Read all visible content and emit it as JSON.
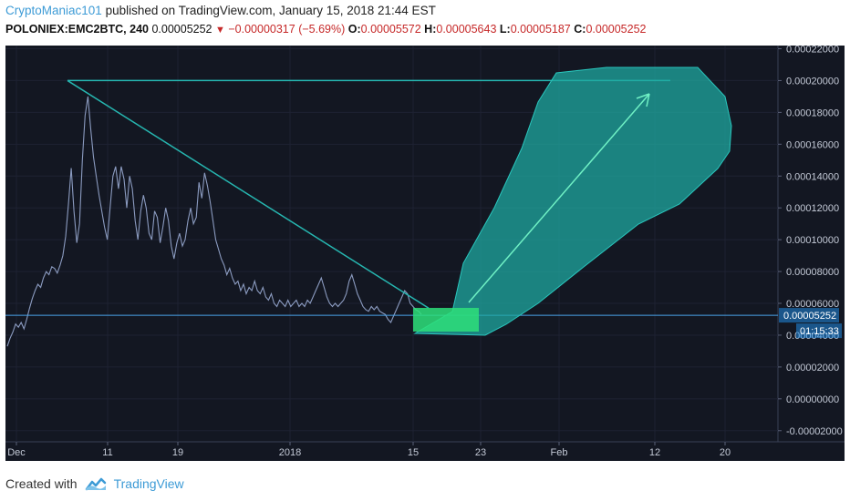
{
  "header": {
    "author": "CryptoManiac101",
    "published_text": "published on TradingView.com, January 15, 2018 21:44 EST"
  },
  "ticker": {
    "symbol": "POLONIEX:EMC2BTC, 240",
    "last": "0.00005252",
    "change": "−0.00000317 (−5.69%)",
    "open_label": "O:",
    "open": "0.00005572",
    "high_label": "H:",
    "high": "0.00005643",
    "low_label": "L:",
    "low": "0.00005187",
    "close_label": "C:",
    "close": "0.00005252"
  },
  "footer": {
    "created_with": "Created with",
    "brand": "TradingView"
  },
  "colors": {
    "background": "#131722",
    "price_line": "#8b9bc0",
    "trend_line": "#26b6b0",
    "projection_fill": "#1fa8a0",
    "highlight_box": "#2ee07a",
    "label_box": "#2196f3"
  },
  "chart_data": {
    "type": "line",
    "x_ticks": [
      "Dec",
      "11",
      "19",
      "2018",
      "15",
      "23",
      "Feb",
      "12",
      "20"
    ],
    "y_ticks": [
      "0.00022000",
      "0.00020000",
      "0.00018000",
      "0.00016000",
      "0.00014000",
      "0.00012000",
      "0.00010000",
      "0.00008000",
      "0.00006000",
      "0.00004000",
      "0.00002000",
      "0.00000000",
      "-0.00002000"
    ],
    "ylim": [
      -2.7e-05,
      0.000222
    ],
    "price_label": "0.00005252",
    "countdown_label": "01:15:33",
    "series": [
      {
        "values": [
          3.3e-05,
          3.8e-05,
          4.2e-05,
          4.7e-05,
          4.5e-05,
          4.8e-05,
          4.4e-05,
          5e-05,
          5.7e-05,
          6.3e-05,
          6.8e-05,
          7.2e-05,
          7e-05,
          7.6e-05,
          8e-05,
          7.8e-05,
          8.3e-05,
          8.2e-05,
          7.9e-05,
          8.4e-05,
          9e-05,
          0.000102,
          0.000122,
          0.000145,
          0.000118,
          9.8e-05,
          0.00011,
          0.00015,
          0.000178,
          0.00019,
          0.00017,
          0.000152,
          0.00014,
          0.000128,
          0.000118,
          0.000108,
          0.0001,
          0.00012,
          0.00014,
          0.000146,
          0.000132,
          0.000146,
          0.000138,
          0.00012,
          0.00014,
          0.000132,
          0.000112,
          0.0001,
          0.000118,
          0.000128,
          0.00012,
          0.000104,
          0.0001,
          0.000118,
          0.000114,
          9.8e-05,
          0.000108,
          0.00012,
          0.000112,
          9.6e-05,
          8.8e-05,
          9.8e-05,
          0.000104,
          9.6e-05,
          0.0001,
          0.000112,
          0.00012,
          0.00011,
          0.000114,
          0.000136,
          0.000126,
          0.000142,
          0.000134,
          0.000124,
          0.000112,
          0.0001,
          9.4e-05,
          8.8e-05,
          8.4e-05,
          7.8e-05,
          8.2e-05,
          7.6e-05,
          7.2e-05,
          7.4e-05,
          6.8e-05,
          7.2e-05,
          6.6e-05,
          7e-05,
          6.8e-05,
          7.4e-05,
          6.8e-05,
          6.6e-05,
          7e-05,
          6.4e-05,
          6.2e-05,
          6.6e-05,
          6e-05,
          5.8e-05,
          6.2e-05,
          6e-05,
          5.8e-05,
          6.2e-05,
          5.8e-05,
          6e-05,
          6.2e-05,
          5.8e-05,
          6e-05,
          5.8e-05,
          6.2e-05,
          6e-05,
          6.4e-05,
          6.8e-05,
          7.2e-05,
          7.6e-05,
          7e-05,
          6.4e-05,
          6e-05,
          5.8e-05,
          6e-05,
          5.8e-05,
          6e-05,
          6.2e-05,
          6.6e-05,
          7.4e-05,
          7.8e-05,
          7.2e-05,
          6.6e-05,
          6.2e-05,
          5.8e-05,
          5.6e-05,
          5.5e-05,
          5.8e-05,
          5.6e-05,
          5.8e-05,
          5.5e-05,
          5.4e-05,
          5.3e-05,
          5e-05,
          4.8e-05,
          5.2e-05,
          5.6e-05,
          6e-05,
          6.4e-05,
          6.8e-05,
          6.6e-05,
          6e-05,
          5.8e-05,
          5.6e-05,
          5.5e-05,
          5.3e-05
        ]
      }
    ]
  }
}
